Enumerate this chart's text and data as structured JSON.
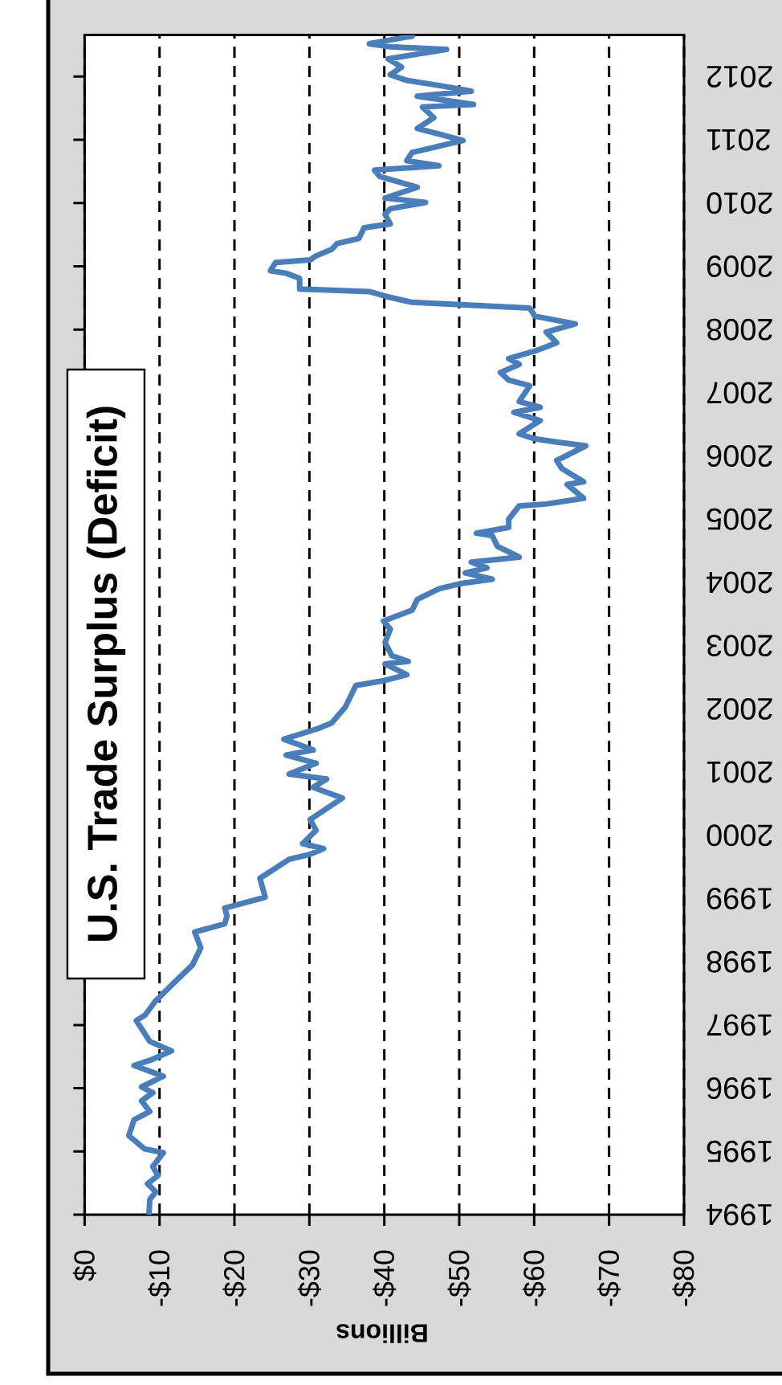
{
  "chart_data": {
    "type": "line",
    "title": "U.S. Trade Surplus (Deficit)",
    "xlabel": "Billions",
    "color": "#4a7ebb",
    "grid": "x",
    "xlim": [
      0,
      -80
    ],
    "ylim": [
      1994,
      2012.66
    ],
    "xticks": [
      {
        "value": 0,
        "label": "$0"
      },
      {
        "value": -10,
        "label": "-$10"
      },
      {
        "value": -20,
        "label": "-$20"
      },
      {
        "value": -30,
        "label": "-$30"
      },
      {
        "value": -40,
        "label": "-$40"
      },
      {
        "value": -50,
        "label": "-$50"
      },
      {
        "value": -60,
        "label": "-$60"
      },
      {
        "value": -70,
        "label": "-$70"
      },
      {
        "value": -80,
        "label": "-$80"
      }
    ],
    "yticks": [
      1994,
      1995,
      1996,
      1997,
      1998,
      1999,
      2000,
      2001,
      2002,
      2003,
      2004,
      2005,
      2006,
      2007,
      2008,
      2009,
      2010,
      2011,
      2012
    ],
    "x": [
      -8.6,
      -8.7,
      -9.5,
      -8.4,
      -9.8,
      -9.1,
      -10.5,
      -8.0,
      -5.9,
      -6.6,
      -8.7,
      -7.6,
      -9.1,
      -7.6,
      -10.5,
      -6.6,
      -8.7,
      -11.6,
      -8.7,
      -6.9,
      -8.1,
      -9.4,
      -11.6,
      -14.4,
      -15.5,
      -14.7,
      -18.7,
      -19.0,
      -18.7,
      -24.1,
      -23.4,
      -27.3,
      -30.1,
      -31.9,
      -29.1,
      -30.9,
      -30.1,
      -34.4,
      -32.3,
      -30.5,
      -32.3,
      -27.3,
      -30.9,
      -26.9,
      -30.5,
      -26.6,
      -31.2,
      -33.0,
      -34.8,
      -36.2,
      -40.1,
      -43.0,
      -40.1,
      -43.2,
      -41.0,
      -40.1,
      -40.8,
      -39.9,
      -43.7,
      -44.4,
      -47.3,
      -50.1,
      -54.4,
      -50.8,
      -53.7,
      -51.6,
      -58.0,
      -55.1,
      -54.4,
      -52.3,
      -56.6,
      -56.6,
      -58.0,
      -61.6,
      -66.6,
      -64.4,
      -66.6,
      -63.7,
      -63.0,
      -64.4,
      -66.9,
      -63.0,
      -60.1,
      -58.0,
      -60.8,
      -57.3,
      -60.8,
      -58.0,
      -59.4,
      -56.6,
      -55.5,
      -58.0,
      -56.6,
      -60.1,
      -63.0,
      -61.6,
      -65.5,
      -60.1,
      -59.4,
      -43.7,
      -40.7,
      -38.0,
      -28.7,
      -28.7,
      -26.9,
      -24.8,
      -25.5,
      -30.1,
      -30.8,
      -33.0,
      -33.7,
      -36.6,
      -37.3,
      -40.8,
      -40.1,
      -40.8,
      -45.5,
      -40.1,
      -44.4,
      -39.4,
      -38.7,
      -47.3,
      -43.0,
      -43.7,
      -50.5,
      -47.3,
      -44.4,
      -46.6,
      -45.1,
      -51.9,
      -44.4,
      -51.6,
      -47.3,
      -43.0,
      -40.8,
      -42.3,
      -40.5,
      -48.3,
      -40.8,
      -38.0,
      -43.7
    ],
    "values": [
      1994.03,
      1994.24,
      1994.36,
      1994.49,
      1994.62,
      1994.76,
      1994.98,
      1995.04,
      1995.25,
      1995.5,
      1995.63,
      1995.8,
      1995.93,
      1996.02,
      1996.19,
      1996.36,
      1996.44,
      1996.59,
      1996.74,
      1997.07,
      1997.16,
      1997.37,
      1997.63,
      1997.95,
      1998.22,
      1998.47,
      1998.6,
      1998.73,
      1998.85,
      1999.02,
      1999.32,
      1999.62,
      1999.7,
      1999.79,
      1999.87,
      2000.08,
      2000.25,
      2000.59,
      2000.68,
      2000.76,
      2000.89,
      2000.97,
      2001.14,
      2001.27,
      2001.35,
      2001.52,
      2001.69,
      2001.78,
      2002.03,
      2002.37,
      2002.45,
      2002.54,
      2002.71,
      2002.75,
      2002.84,
      2003.05,
      2003.26,
      2003.39,
      2003.56,
      2003.73,
      2003.9,
      2003.98,
      2004.05,
      2004.15,
      2004.23,
      2004.32,
      2004.4,
      2004.57,
      2004.74,
      2004.78,
      2004.87,
      2005.0,
      2005.21,
      2005.24,
      2005.33,
      2005.55,
      2005.59,
      2005.8,
      2005.93,
      2006.01,
      2006.16,
      2006.22,
      2006.27,
      2006.35,
      2006.56,
      2006.69,
      2006.77,
      2006.86,
      2007.11,
      2007.2,
      2007.32,
      2007.45,
      2007.54,
      2007.66,
      2007.79,
      2007.96,
      2008.09,
      2008.21,
      2008.34,
      2008.43,
      2008.51,
      2008.6,
      2008.64,
      2008.81,
      2008.89,
      2008.93,
      2009.06,
      2009.1,
      2009.16,
      2009.27,
      2009.36,
      2009.44,
      2009.61,
      2009.67,
      2009.82,
      2009.91,
      2010.01,
      2010.08,
      2010.25,
      2010.42,
      2010.52,
      2010.59,
      2010.67,
      2010.8,
      2010.99,
      2011.09,
      2011.18,
      2011.35,
      2011.52,
      2011.56,
      2011.69,
      2011.77,
      2011.86,
      2011.94,
      2012.03,
      2012.15,
      2012.28,
      2012.43,
      2012.47,
      2012.52,
      2012.64
    ]
  }
}
